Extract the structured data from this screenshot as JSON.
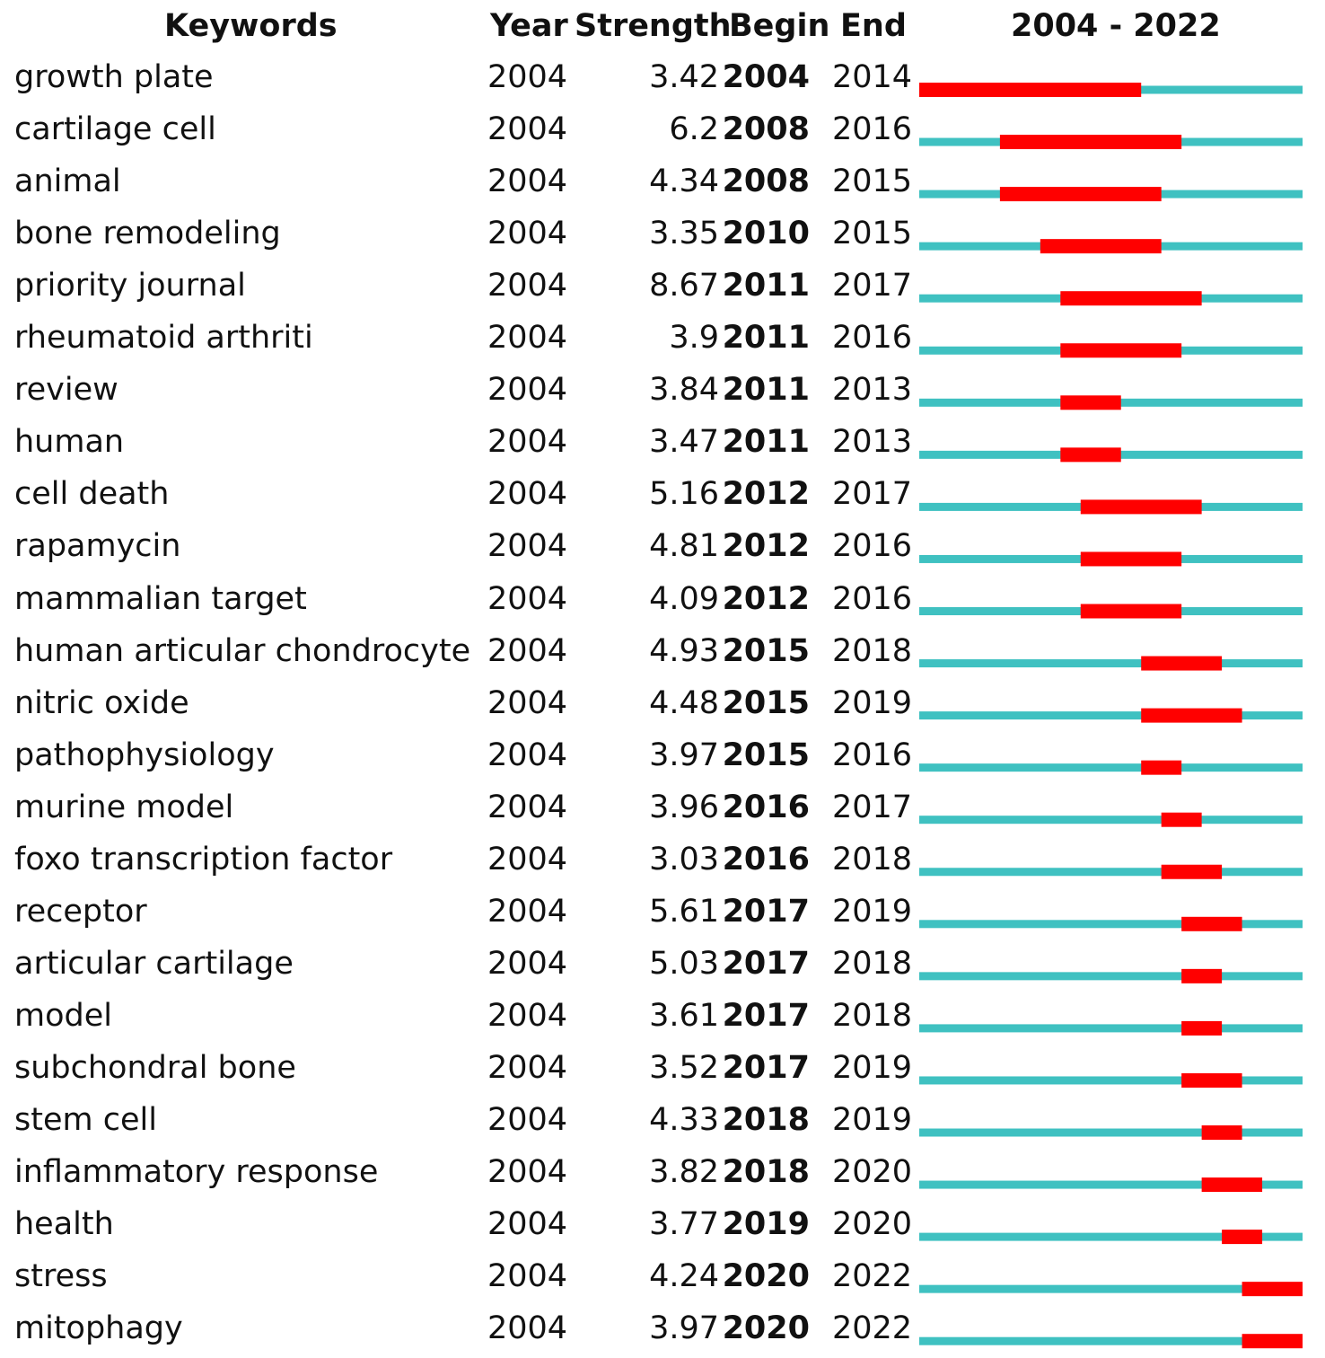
{
  "chart_data": {
    "type": "table",
    "columns": {
      "keywords": "Keywords",
      "year": "Year",
      "strength": "Strength",
      "begin": "Begin",
      "end": "End",
      "range": "2004 - 2022"
    },
    "timeline": {
      "start": 2004,
      "end": 2022
    },
    "colors": {
      "burst": "#ff0000",
      "baseline": "#3fc1c1"
    },
    "rows": [
      {
        "keyword": "growth plate",
        "year": "2004",
        "strength": "3.42",
        "begin": "2004",
        "end": "2014"
      },
      {
        "keyword": "cartilage cell",
        "year": "2004",
        "strength": "6.2",
        "begin": "2008",
        "end": "2016"
      },
      {
        "keyword": "animal",
        "year": "2004",
        "strength": "4.34",
        "begin": "2008",
        "end": "2015"
      },
      {
        "keyword": "bone remodeling",
        "year": "2004",
        "strength": "3.35",
        "begin": "2010",
        "end": "2015"
      },
      {
        "keyword": "priority journal",
        "year": "2004",
        "strength": "8.67",
        "begin": "2011",
        "end": "2017"
      },
      {
        "keyword": "rheumatoid arthriti",
        "year": "2004",
        "strength": "3.9",
        "begin": "2011",
        "end": "2016"
      },
      {
        "keyword": "review",
        "year": "2004",
        "strength": "3.84",
        "begin": "2011",
        "end": "2013"
      },
      {
        "keyword": "human",
        "year": "2004",
        "strength": "3.47",
        "begin": "2011",
        "end": "2013"
      },
      {
        "keyword": "cell death",
        "year": "2004",
        "strength": "5.16",
        "begin": "2012",
        "end": "2017"
      },
      {
        "keyword": "rapamycin",
        "year": "2004",
        "strength": "4.81",
        "begin": "2012",
        "end": "2016"
      },
      {
        "keyword": "mammalian target",
        "year": "2004",
        "strength": "4.09",
        "begin": "2012",
        "end": "2016"
      },
      {
        "keyword": "human articular chondrocyte",
        "year": "2004",
        "strength": "4.93",
        "begin": "2015",
        "end": "2018"
      },
      {
        "keyword": "nitric oxide",
        "year": "2004",
        "strength": "4.48",
        "begin": "2015",
        "end": "2019"
      },
      {
        "keyword": "pathophysiology",
        "year": "2004",
        "strength": "3.97",
        "begin": "2015",
        "end": "2016"
      },
      {
        "keyword": "murine model",
        "year": "2004",
        "strength": "3.96",
        "begin": "2016",
        "end": "2017"
      },
      {
        "keyword": "foxo transcription factor",
        "year": "2004",
        "strength": "3.03",
        "begin": "2016",
        "end": "2018"
      },
      {
        "keyword": "receptor",
        "year": "2004",
        "strength": "5.61",
        "begin": "2017",
        "end": "2019"
      },
      {
        "keyword": "articular cartilage",
        "year": "2004",
        "strength": "5.03",
        "begin": "2017",
        "end": "2018"
      },
      {
        "keyword": "model",
        "year": "2004",
        "strength": "3.61",
        "begin": "2017",
        "end": "2018"
      },
      {
        "keyword": "subchondral bone",
        "year": "2004",
        "strength": "3.52",
        "begin": "2017",
        "end": "2019"
      },
      {
        "keyword": "stem cell",
        "year": "2004",
        "strength": "4.33",
        "begin": "2018",
        "end": "2019"
      },
      {
        "keyword": "inflammatory response",
        "year": "2004",
        "strength": "3.82",
        "begin": "2018",
        "end": "2020"
      },
      {
        "keyword": "health",
        "year": "2004",
        "strength": "3.77",
        "begin": "2019",
        "end": "2020"
      },
      {
        "keyword": "stress",
        "year": "2004",
        "strength": "4.24",
        "begin": "2020",
        "end": "2022"
      },
      {
        "keyword": "mitophagy",
        "year": "2004",
        "strength": "3.97",
        "begin": "2020",
        "end": "2022"
      }
    ]
  }
}
